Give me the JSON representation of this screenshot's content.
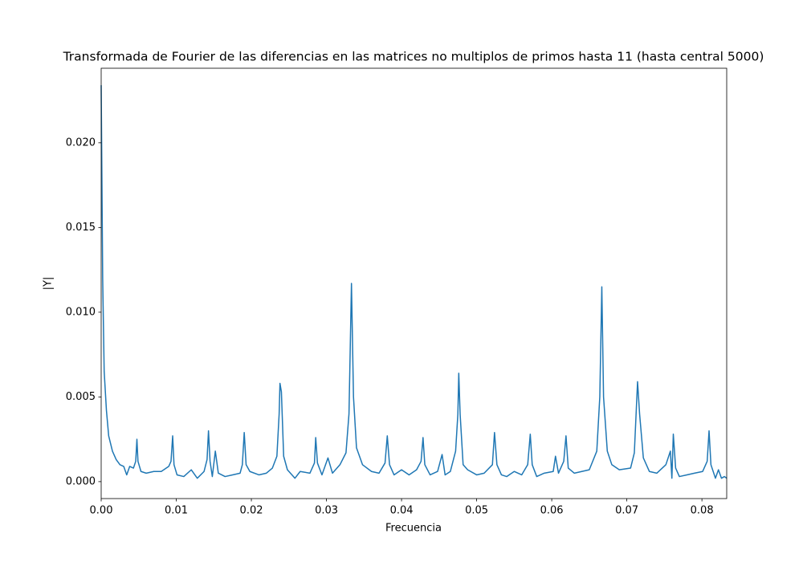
{
  "chart_data": {
    "type": "line",
    "title": "Transformada de Fourier de las diferencias en las matrices no multiplos de primos hasta 11 (hasta central 5000)",
    "x_label": "Frecuencia",
    "y_label": "|Y|",
    "color": "#1f77b4",
    "grid": false,
    "xlim": [
      0,
      0.0833
    ],
    "ylim": [
      -0.001,
      0.0244
    ],
    "xticks": [
      {
        "value": 0,
        "label": "0.00"
      },
      {
        "value": 0.01,
        "label": "0.01"
      },
      {
        "value": 0.02,
        "label": "0.02"
      },
      {
        "value": 0.03,
        "label": "0.03"
      },
      {
        "value": 0.04,
        "label": "0.04"
      },
      {
        "value": 0.05,
        "label": "0.05"
      },
      {
        "value": 0.06,
        "label": "0.06"
      },
      {
        "value": 0.07,
        "label": "0.07"
      },
      {
        "value": 0.08,
        "label": "0.08"
      }
    ],
    "yticks": [
      {
        "value": 0,
        "label": "0.000"
      },
      {
        "value": 0.005,
        "label": "0.005"
      },
      {
        "value": 0.01,
        "label": "0.010"
      },
      {
        "value": 0.015,
        "label": "0.015"
      },
      {
        "value": 0.02,
        "label": "0.020"
      }
    ],
    "x": [
      0,
      0.0002,
      0.0004,
      0.0007,
      0.001,
      0.0015,
      0.002,
      0.0025,
      0.003,
      0.0034,
      0.0038,
      0.0043,
      0.0046,
      0.00476,
      0.0049,
      0.0053,
      0.006,
      0.007,
      0.008,
      0.009,
      0.0093,
      0.00952,
      0.0097,
      0.0101,
      0.011,
      0.012,
      0.0128,
      0.0137,
      0.0141,
      0.01429,
      0.0145,
      0.0148,
      0.0152,
      0.0156,
      0.0165,
      0.0175,
      0.0185,
      0.0188,
      0.01905,
      0.0193,
      0.0198,
      0.021,
      0.022,
      0.0228,
      0.0234,
      0.0237,
      0.02381,
      0.024,
      0.0243,
      0.0248,
      0.0258,
      0.0265,
      0.0278,
      0.0284,
      0.02857,
      0.0288,
      0.0294,
      0.0302,
      0.0308,
      0.0318,
      0.0326,
      0.033,
      0.03333,
      0.0336,
      0.034,
      0.0348,
      0.036,
      0.037,
      0.0378,
      0.0381,
      0.0384,
      0.039,
      0.04,
      0.041,
      0.042,
      0.0426,
      0.04286,
      0.0431,
      0.0438,
      0.0448,
      0.0454,
      0.0458,
      0.0465,
      0.0472,
      0.0475,
      0.04762,
      0.0478,
      0.0482,
      0.0488,
      0.05,
      0.051,
      0.0521,
      0.05238,
      0.0527,
      0.0533,
      0.054,
      0.055,
      0.056,
      0.0568,
      0.05714,
      0.0574,
      0.058,
      0.059,
      0.0602,
      0.0605,
      0.0609,
      0.0616,
      0.0619,
      0.0622,
      0.063,
      0.064,
      0.065,
      0.066,
      0.0664,
      0.06667,
      0.0669,
      0.0674,
      0.068,
      0.069,
      0.0705,
      0.071,
      0.07143,
      0.0717,
      0.0722,
      0.073,
      0.074,
      0.0752,
      0.0758,
      0.076,
      0.07619,
      0.0765,
      0.077,
      0.078,
      0.079,
      0.0801,
      0.0807,
      0.08095,
      0.0812,
      0.0818,
      0.0822,
      0.0826,
      0.083,
      0.0833
    ],
    "values": [
      0.0234,
      0.012,
      0.0065,
      0.0042,
      0.0027,
      0.0018,
      0.0013,
      0.001,
      0.0009,
      0.0004,
      0.0009,
      0.0008,
      0.0012,
      0.0025,
      0.0012,
      0.0006,
      0.0005,
      0.0006,
      0.0006,
      0.0009,
      0.0012,
      0.0027,
      0.001,
      0.0004,
      0.0003,
      0.0007,
      0.0002,
      0.0006,
      0.0013,
      0.003,
      0.0012,
      0.0003,
      0.0018,
      0.0005,
      0.0003,
      0.0004,
      0.0005,
      0.001,
      0.0029,
      0.001,
      0.0006,
      0.0004,
      0.0005,
      0.0008,
      0.0015,
      0.004,
      0.0058,
      0.0053,
      0.0015,
      0.0007,
      0.0002,
      0.0006,
      0.0005,
      0.0011,
      0.0026,
      0.0011,
      0.0004,
      0.0014,
      0.0005,
      0.001,
      0.0017,
      0.004,
      0.0117,
      0.005,
      0.002,
      0.001,
      0.0006,
      0.0005,
      0.0011,
      0.0027,
      0.001,
      0.0004,
      0.0007,
      0.0004,
      0.0007,
      0.0012,
      0.0026,
      0.001,
      0.0004,
      0.0006,
      0.0016,
      0.0004,
      0.0006,
      0.0018,
      0.004,
      0.0064,
      0.004,
      0.001,
      0.0007,
      0.0004,
      0.0005,
      0.001,
      0.0029,
      0.001,
      0.0004,
      0.0003,
      0.0006,
      0.0004,
      0.001,
      0.0028,
      0.001,
      0.0003,
      0.0005,
      0.0006,
      0.0015,
      0.0005,
      0.0012,
      0.0027,
      0.0008,
      0.0005,
      0.0006,
      0.0007,
      0.0018,
      0.005,
      0.0115,
      0.005,
      0.0018,
      0.001,
      0.0007,
      0.0008,
      0.0017,
      0.0059,
      0.004,
      0.0014,
      0.0006,
      0.0005,
      0.001,
      0.0018,
      0.0002,
      0.0028,
      0.0008,
      0.0003,
      0.0004,
      0.0005,
      0.0006,
      0.0012,
      0.003,
      0.001,
      0.0002,
      0.0007,
      0.0002,
      0.0003,
      0.0002
    ]
  }
}
